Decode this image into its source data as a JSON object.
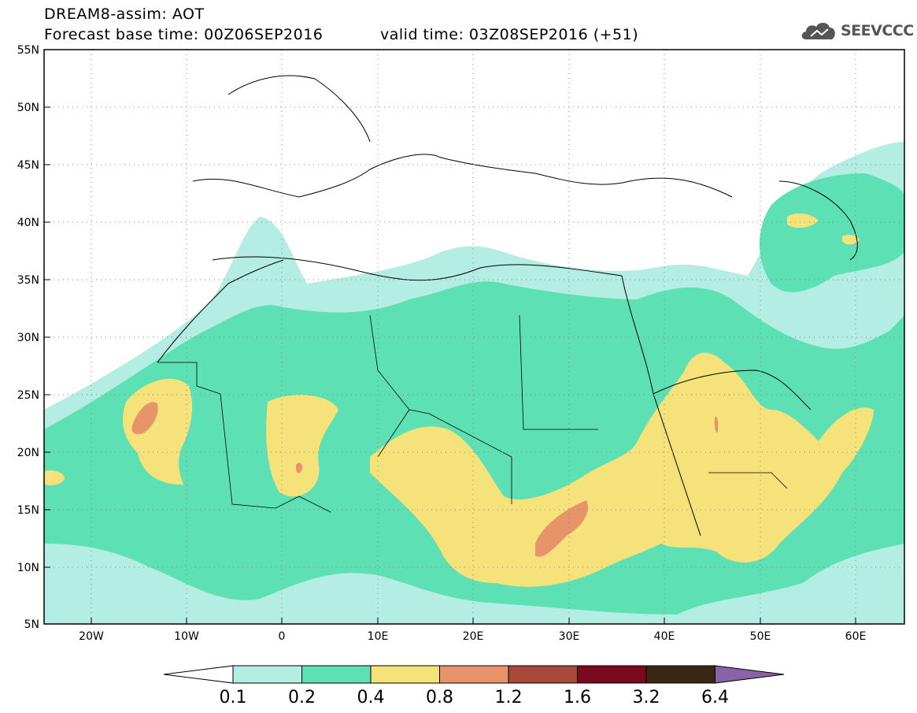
{
  "title": {
    "line1": "DREAM8-assim: AOT",
    "line2": "Forecast base time: 00Z06SEP2016",
    "valid": "valid time: 03Z08SEP2016 (+51)"
  },
  "logo": {
    "text": "SEEVCCC",
    "icon": "cloud-logo-icon"
  },
  "axes": {
    "lat_labels": [
      "55N",
      "50N",
      "45N",
      "40N",
      "35N",
      "30N",
      "25N",
      "20N",
      "15N",
      "10N",
      "5N"
    ],
    "lon_labels": [
      "20W",
      "10W",
      "0",
      "10E",
      "20E",
      "30E",
      "40E",
      "50E",
      "60E"
    ],
    "lon_range": [
      -25,
      65
    ],
    "lat_range": [
      5,
      55
    ],
    "grid": "dotted"
  },
  "colorbar": {
    "colors": [
      "#ffffff",
      "#b4ede1",
      "#5ce0b4",
      "#f5e27a",
      "#e8946a",
      "#a84a3a",
      "#7b0a1e",
      "#3a2614",
      "#8a62a8"
    ],
    "labels": [
      "0.1",
      "0.2",
      "0.4",
      "0.8",
      "1.2",
      "1.6",
      "3.2",
      "6.4"
    ]
  }
}
